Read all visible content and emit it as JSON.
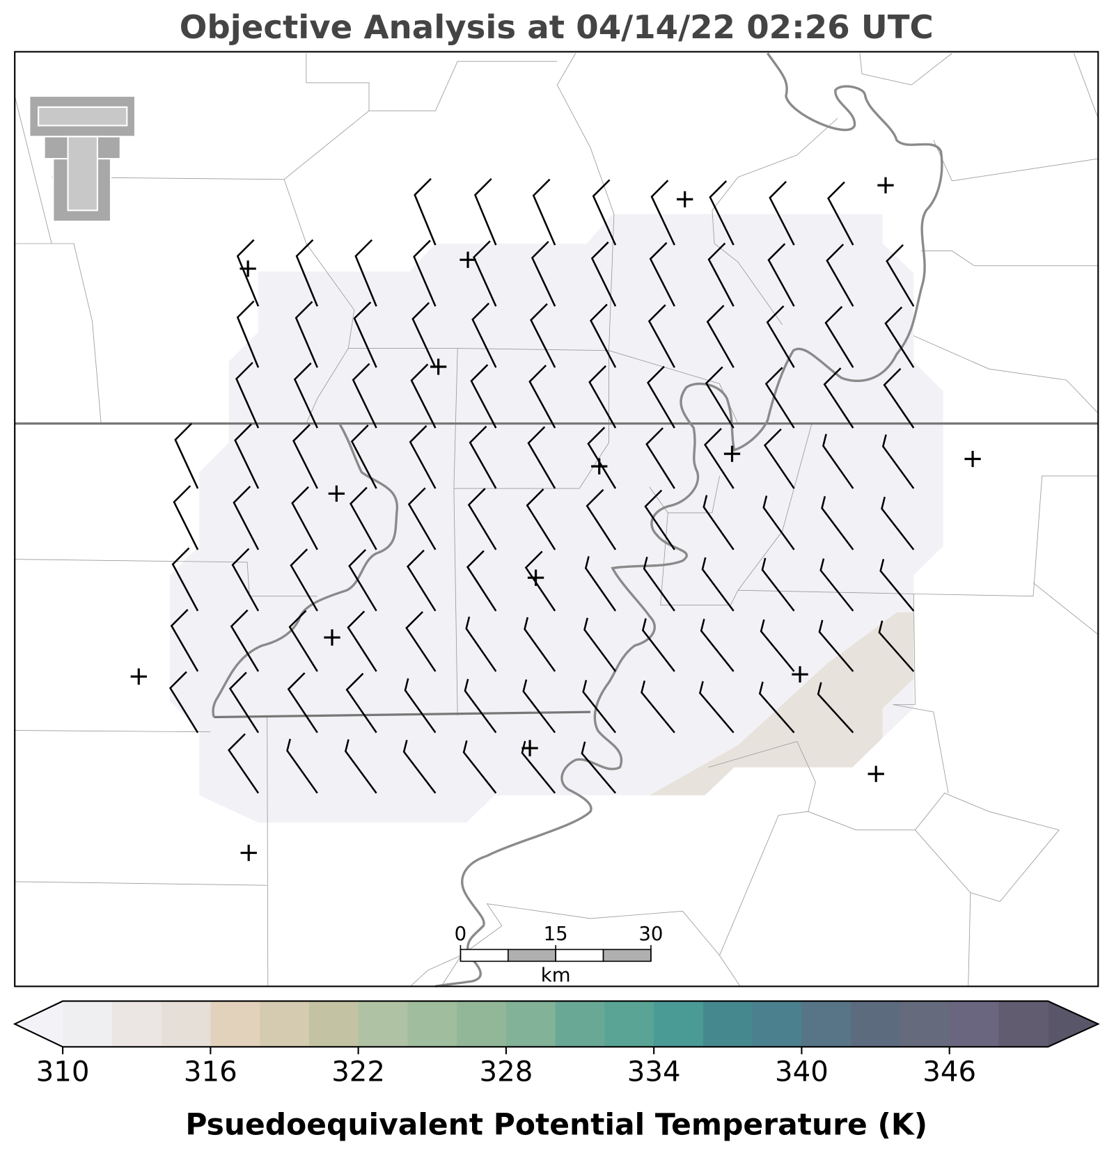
{
  "title": "Objective Analysis at 04/14/22 02:26 UTC",
  "scale_bar": {
    "ticks": [
      0,
      15,
      30
    ],
    "unit": "km"
  },
  "colorbar": {
    "label": "Psuedoequivalent Potential Temperature (K)",
    "ticks": [
      310,
      316,
      322,
      328,
      334,
      340,
      346
    ],
    "levels": [
      310,
      312,
      314,
      316,
      318,
      320,
      322,
      324,
      326,
      328,
      330,
      332,
      334,
      336,
      338,
      340,
      342,
      344,
      346,
      348,
      350
    ],
    "colors": [
      "#efeef1",
      "#ebe6e4",
      "#e6dfd8",
      "#e3d2bb",
      "#d4cbb0",
      "#c3c3a4",
      "#b0c2a4",
      "#a0bd9e",
      "#92b798",
      "#82b298",
      "#6aa896",
      "#59a494",
      "#4a9a96",
      "#45898f",
      "#4b808e",
      "#587487",
      "#5d6b7f",
      "#656a7d",
      "#6a6680",
      "#625c71"
    ],
    "under_color": "#f3f2f6",
    "over_color": "#5a566a"
  }
}
